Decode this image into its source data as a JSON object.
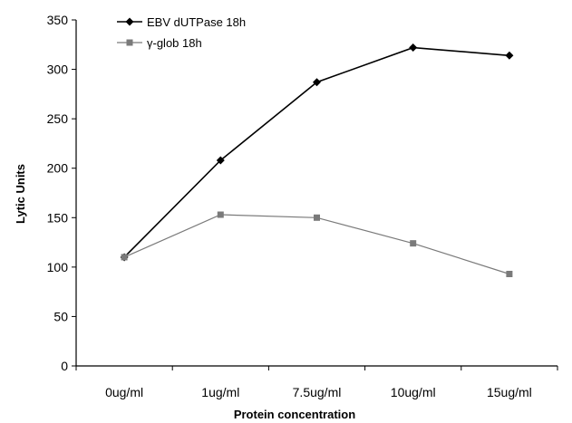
{
  "chart_data": {
    "type": "line",
    "title": "",
    "xlabel": "Protein concentration",
    "ylabel": "Lytic Units",
    "categories": [
      "0ug/ml",
      "1ug/ml",
      "7.5ug/ml",
      "10ug/ml",
      "15ug/ml"
    ],
    "ylim": [
      0,
      350
    ],
    "yticks": [
      0,
      50,
      100,
      150,
      200,
      250,
      300,
      350
    ],
    "grid": false,
    "legend_position": "top-left",
    "series": [
      {
        "name": "EBV dUTPase 18h",
        "marker": "diamond",
        "color": "#000000",
        "values": [
          110,
          208,
          287,
          322,
          314
        ]
      },
      {
        "name": "γ-glob 18h",
        "marker": "square",
        "color": "#7a7a7a",
        "values": [
          110,
          153,
          150,
          124,
          93
        ]
      }
    ]
  }
}
